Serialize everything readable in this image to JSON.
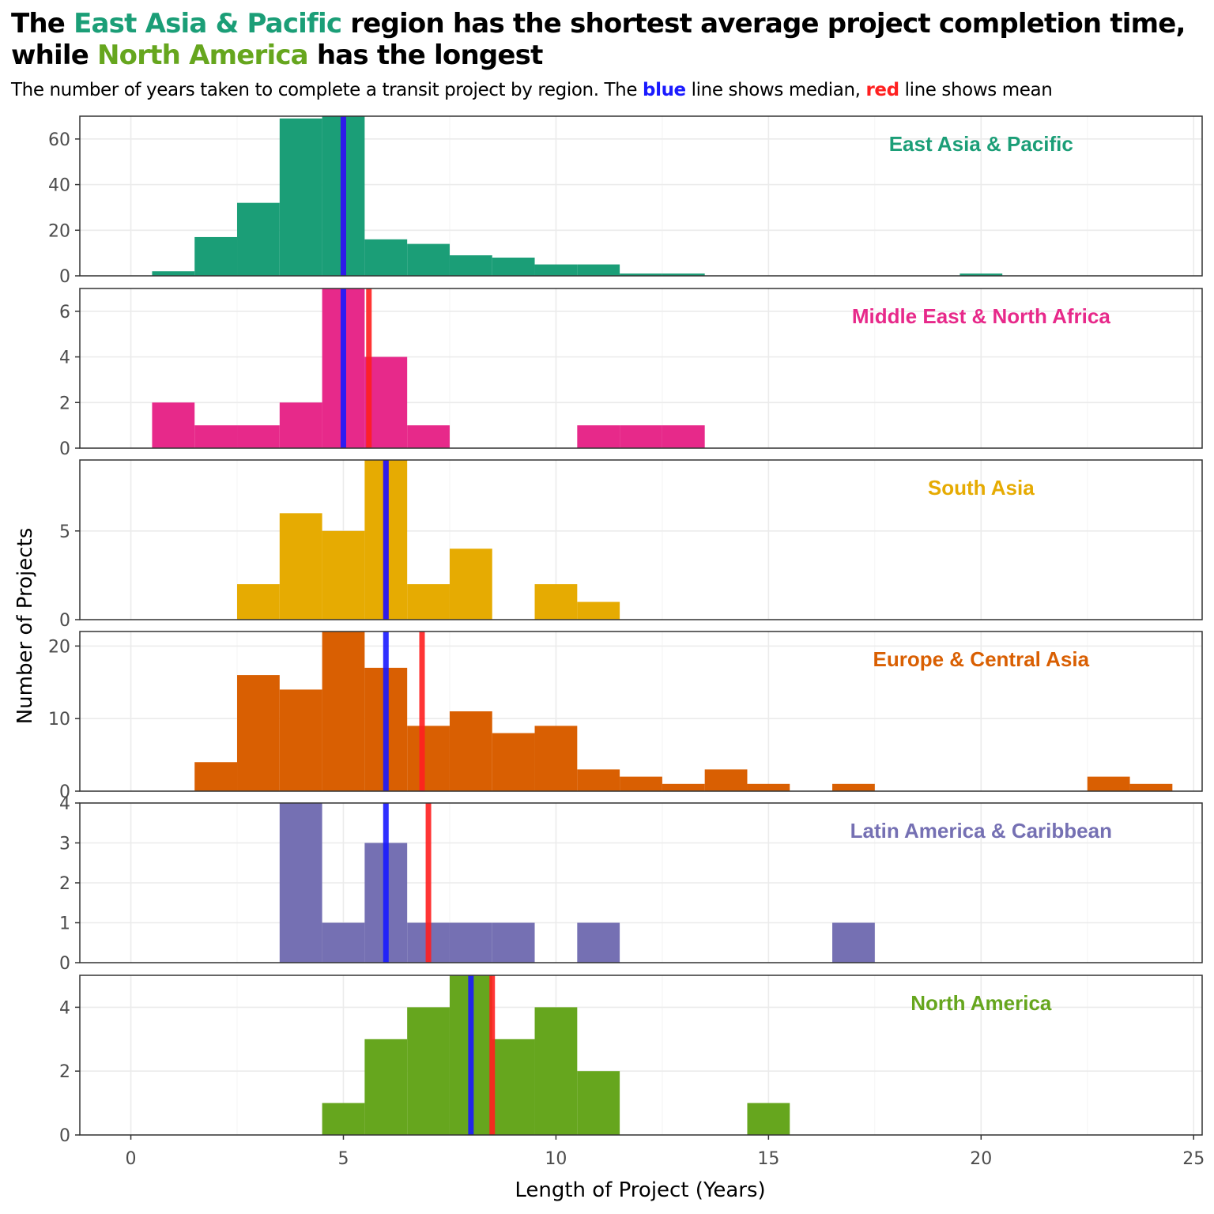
{
  "title": {
    "line1_prefix": "The ",
    "line1_region": "East Asia & Pacific",
    "line1_suffix": " region has the shortest average project completion time,",
    "line2_prefix": "while ",
    "line2_region": "North America",
    "line2_suffix": " has the longest"
  },
  "subtitle": {
    "part1": "The number of years taken to complete a transit project by region. The ",
    "blue_word": "blue",
    "part2": " line shows median, ",
    "red_word": "red",
    "part3": " line shows mean"
  },
  "colors": {
    "median_line": "#1a1aff",
    "mean_line": "#ff2020",
    "east_asia": "#1b9e77",
    "mena": "#e7298a",
    "south_asia": "#e6ab02",
    "europe": "#d95f02",
    "latam": "#7570b3",
    "north_america": "#66a61e"
  },
  "chart_data": {
    "type": "histogram",
    "xlabel": "Length of Project (Years)",
    "ylabel": "Number of Projects",
    "xlim": [
      -1.2,
      25.2
    ],
    "x_ticks": [
      0,
      5,
      10,
      15,
      20,
      25
    ],
    "bin_width": 1,
    "bin_start": 0.5,
    "grid": true,
    "legend": "none",
    "panels": [
      {
        "label": "East Asia & Pacific",
        "color_key": "east_asia",
        "ylim": [
          0,
          70
        ],
        "y_ticks": [
          0,
          20,
          40,
          60
        ],
        "counts": [
          2,
          17,
          32,
          69,
          71,
          16,
          14,
          9,
          8,
          5,
          5,
          1,
          1,
          0,
          0,
          0,
          0,
          0,
          0,
          1
        ],
        "median": 5.0,
        "mean": 5.0
      },
      {
        "label": "Middle East & North Africa",
        "color_key": "mena",
        "ylim": [
          0,
          7
        ],
        "y_ticks": [
          0,
          2,
          4,
          6
        ],
        "counts": [
          2,
          1,
          1,
          2,
          7,
          4,
          1,
          0,
          0,
          0,
          1,
          1,
          1
        ],
        "median": 5.0,
        "mean": 5.6
      },
      {
        "label": "South Asia",
        "color_key": "south_asia",
        "ylim": [
          0,
          9
        ],
        "y_ticks": [
          0,
          5
        ],
        "counts": [
          0,
          0,
          2,
          6,
          5,
          9,
          2,
          4,
          0,
          2,
          1
        ],
        "median": 6.0,
        "mean": 6.0
      },
      {
        "label": "Europe & Central Asia",
        "color_key": "europe",
        "ylim": [
          0,
          22
        ],
        "y_ticks": [
          0,
          10,
          20
        ],
        "counts": [
          0,
          4,
          16,
          14,
          22,
          17,
          9,
          11,
          8,
          9,
          3,
          2,
          1,
          3,
          1,
          0,
          1,
          0,
          0,
          0,
          0,
          0,
          2,
          1
        ],
        "median": 6.0,
        "mean": 6.85
      },
      {
        "label": "Latin America & Caribbean",
        "color_key": "latam",
        "ylim": [
          0,
          4
        ],
        "y_ticks": [
          0,
          1,
          2,
          3,
          4
        ],
        "counts": [
          0,
          0,
          0,
          4,
          1,
          3,
          1,
          1,
          1,
          0,
          1,
          0,
          0,
          0,
          0,
          0,
          1
        ],
        "median": 6.0,
        "mean": 7.0
      },
      {
        "label": "North America",
        "color_key": "north_america",
        "ylim": [
          0,
          5
        ],
        "y_ticks": [
          0,
          2,
          4
        ],
        "counts": [
          0,
          0,
          0,
          0,
          1,
          3,
          4,
          5,
          3,
          4,
          2,
          0,
          0,
          0,
          1
        ],
        "median": 8.0,
        "mean": 8.5
      }
    ]
  }
}
